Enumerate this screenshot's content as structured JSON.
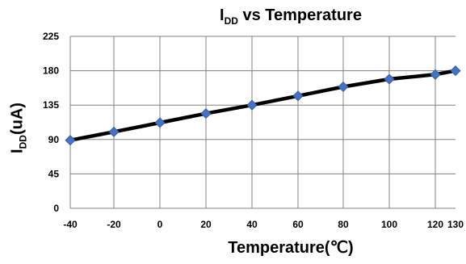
{
  "chart_data": {
    "type": "line",
    "title": {
      "main": "I",
      "sub": "DD",
      "rest": " vs Temperature"
    },
    "xlabel": "Temperature(℃)",
    "ylabel": {
      "main": "I",
      "sub": "DD",
      "rest": "(uA)"
    },
    "x_ticks": [
      "-40",
      "-20",
      "0",
      "20",
      "40",
      "60",
      "80",
      "100",
      "120",
      "130"
    ],
    "y_ticks": [
      "0",
      "45",
      "90",
      "135",
      "180",
      "225"
    ],
    "xlim": [
      -40,
      130
    ],
    "ylim": [
      0,
      225
    ],
    "grid": true,
    "series": [
      {
        "x": [
          -40,
          -20,
          0,
          20,
          40,
          60,
          80,
          100,
          120,
          130
        ],
        "values": [
          89,
          100,
          112,
          124,
          135,
          147,
          159,
          169,
          175,
          180
        ]
      }
    ],
    "colors": {
      "line": "#000000",
      "marker": "#4472C4",
      "grid": "#808080"
    }
  }
}
